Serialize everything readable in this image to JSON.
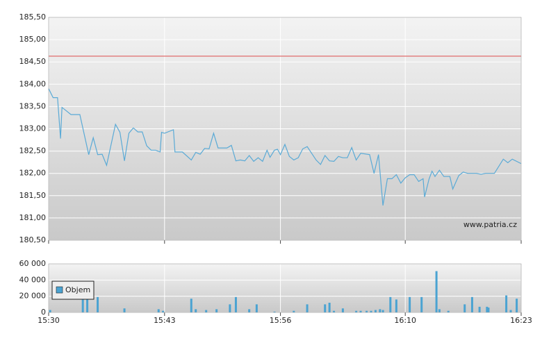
{
  "chart_data": [
    {
      "type": "line",
      "color": "#5aaad6",
      "annotation": "www.patria.cz",
      "reference_lines": [
        184.63
      ],
      "reference_color": "#e06a6a",
      "xlim": [
        "15:30",
        "16:23"
      ],
      "ylim": [
        180.5,
        185.5
      ],
      "yticks": [
        {
          "value": 180.5,
          "label": "180,50"
        },
        {
          "value": 181,
          "label": "181,00"
        },
        {
          "value": 181.5,
          "label": "181,50"
        },
        {
          "value": 182,
          "label": "182,00"
        },
        {
          "value": 182.5,
          "label": "182,50"
        },
        {
          "value": 183,
          "label": "183,00"
        },
        {
          "value": 183.5,
          "label": "183,50"
        },
        {
          "value": 184,
          "label": "184,00"
        },
        {
          "value": 184.5,
          "label": "184,50"
        },
        {
          "value": 185,
          "label": "185,00"
        },
        {
          "value": 185.5,
          "label": "185,50"
        }
      ],
      "grid": true,
      "x": [
        "15:30:00",
        "15:30:30",
        "15:31:00",
        "15:31:20",
        "15:31:30",
        "15:32:00",
        "15:32:30",
        "15:33:30",
        "15:34:30",
        "15:35:00",
        "15:35:30",
        "15:36:00",
        "15:36:30",
        "15:37:30",
        "15:38:00",
        "15:38:30",
        "15:39:00",
        "15:39:30",
        "15:40:00",
        "15:40:30",
        "15:41:00",
        "15:41:30",
        "15:42:00",
        "15:42:30",
        "15:42:40",
        "15:43:00",
        "15:44:00",
        "15:44:10",
        "15:45:00",
        "15:46:00",
        "15:46:30",
        "15:47:00",
        "15:47:30",
        "15:48:00",
        "15:48:30",
        "15:49:00",
        "15:50:00",
        "15:50:30",
        "15:51:00",
        "15:51:30",
        "15:52:00",
        "15:52:30",
        "15:53:00",
        "15:53:30",
        "15:54:00",
        "15:54:30",
        "15:54:50",
        "15:55:20",
        "15:55:40",
        "15:56:00",
        "15:56:30",
        "15:57:00",
        "15:57:30",
        "15:58:00",
        "15:58:30",
        "15:59:00",
        "16:00:00",
        "16:00:30",
        "16:01:00",
        "16:01:30",
        "16:02:00",
        "16:02:30",
        "16:03:00",
        "16:03:30",
        "16:04:00",
        "16:04:30",
        "16:05:00",
        "16:06:00",
        "16:06:30",
        "16:07:00",
        "16:07:30",
        "16:08:00",
        "16:08:30",
        "16:09:00",
        "16:09:30",
        "16:10:00",
        "16:10:30",
        "16:11:00",
        "16:11:30",
        "16:12:00",
        "16:12:10",
        "16:12:40",
        "16:13:00",
        "16:13:20",
        "16:13:50",
        "16:14:20",
        "16:15:00",
        "16:15:20",
        "16:16:00",
        "16:16:30",
        "16:17:00",
        "16:18:00",
        "16:18:30",
        "16:19:00",
        "16:20:00",
        "16:21:00",
        "16:21:30",
        "16:22:00",
        "16:23:00"
      ],
      "values": [
        183.9,
        183.7,
        183.7,
        182.78,
        183.48,
        183.4,
        183.32,
        183.32,
        182.42,
        182.8,
        182.42,
        182.43,
        182.18,
        183.1,
        182.92,
        182.28,
        182.9,
        183.02,
        182.93,
        182.93,
        182.62,
        182.52,
        182.52,
        182.48,
        182.92,
        182.9,
        182.98,
        182.48,
        182.48,
        182.3,
        182.47,
        182.43,
        182.56,
        182.55,
        182.9,
        182.57,
        182.57,
        182.63,
        182.28,
        182.3,
        182.28,
        182.4,
        182.27,
        182.35,
        182.27,
        182.52,
        182.36,
        182.52,
        182.54,
        182.42,
        182.65,
        182.38,
        182.3,
        182.35,
        182.55,
        182.6,
        182.3,
        182.2,
        182.4,
        182.28,
        182.27,
        182.38,
        182.35,
        182.35,
        182.58,
        182.3,
        182.45,
        182.42,
        182.0,
        182.42,
        181.28,
        181.88,
        181.88,
        181.97,
        181.78,
        181.9,
        181.97,
        181.97,
        181.82,
        181.88,
        181.47,
        181.87,
        182.05,
        181.93,
        182.07,
        181.93,
        181.93,
        181.65,
        181.95,
        182.03,
        182.0,
        182.0,
        181.98,
        182.0,
        182.0,
        182.32,
        182.24,
        182.32,
        182.22
      ]
    },
    {
      "type": "bar",
      "xlim": [
        "15:30",
        "16:23"
      ],
      "xticks": [
        "15:30",
        "15:43",
        "15:56",
        "16:10",
        "16:23"
      ],
      "ylim": [
        0,
        60000
      ],
      "yticks": [
        0,
        {
          "value": 20000,
          "label": "20 000"
        },
        {
          "value": 40000,
          "label": "40 000"
        },
        {
          "value": 60000,
          "label": "60 000"
        }
      ],
      "grid": true,
      "legend": "bottom-left",
      "x": [
        "15:30:10",
        "15:33:50",
        "15:34:20",
        "15:35:30",
        "15:38:30",
        "15:42:20",
        "15:42:50",
        "15:46:00",
        "15:46:30",
        "15:47:40",
        "15:48:50",
        "15:50:20",
        "15:51:00",
        "15:52:30",
        "15:53:20",
        "15:55:20",
        "15:57:30",
        "15:59:00",
        "16:01:00",
        "16:01:30",
        "16:02:00",
        "16:03:00",
        "16:04:30",
        "16:05:00",
        "16:05:40",
        "16:06:10",
        "16:06:40",
        "16:07:10",
        "16:07:30",
        "16:08:20",
        "16:09:00",
        "16:10:30",
        "16:11:50",
        "16:13:30",
        "16:13:50",
        "16:14:50",
        "16:16:40",
        "16:17:30",
        "16:18:20",
        "16:19:10",
        "16:19:20",
        "16:21:20",
        "16:21:50",
        "16:22:30"
      ],
      "series": [
        {
          "name": "Objem",
          "color": "#4aa3d2",
          "values": [
            3000,
            20000,
            17000,
            19000,
            5000,
            4000,
            2000,
            17000,
            4000,
            3000,
            4000,
            10000,
            19000,
            4000,
            10000,
            1000,
            2000,
            10000,
            10000,
            12000,
            2000,
            5000,
            2000,
            2000,
            2000,
            2000,
            3000,
            4000,
            3000,
            19000,
            16000,
            19000,
            19000,
            51000,
            4000,
            2000,
            10000,
            19000,
            7000,
            7000,
            6000,
            21000,
            3000,
            17000
          ]
        }
      ]
    }
  ]
}
